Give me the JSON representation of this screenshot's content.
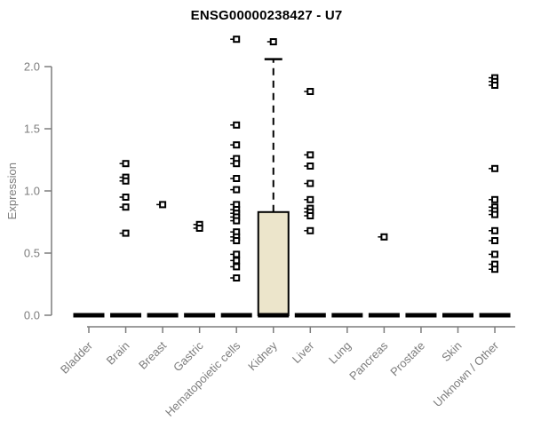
{
  "chart_data": {
    "type": "boxplot",
    "title": "ENSG00000238427 - U7",
    "ylabel": "Expression",
    "xlabel": "",
    "ylim": [
      0,
      2.3
    ],
    "yticks": [
      "0.0",
      "0.5",
      "1.0",
      "1.5",
      "2.0"
    ],
    "grid": false,
    "legend": "none",
    "categories": [
      "Bladder",
      "Brain",
      "Breast",
      "Gastric",
      "Hematopoietic cells",
      "Kidney",
      "Liver",
      "Lung",
      "Pancreas",
      "Prostate",
      "Skin",
      "Unknown / Other"
    ],
    "groups": [
      {
        "category": "Bladder",
        "median": 0,
        "outliers": []
      },
      {
        "category": "Brain",
        "median": 0,
        "outliers": [
          1.22,
          1.11,
          1.08,
          0.95,
          0.87,
          0.66
        ]
      },
      {
        "category": "Breast",
        "median": 0,
        "outliers": [
          0.89
        ]
      },
      {
        "category": "Gastric",
        "median": 0,
        "outliers": [
          0.73,
          0.7
        ]
      },
      {
        "category": "Hematopoietic cells",
        "median": 0,
        "outliers": [
          2.22,
          1.53,
          1.37,
          1.26,
          1.22,
          1.1,
          1.01,
          0.89,
          0.85,
          0.82,
          0.79,
          0.76,
          0.67,
          0.63,
          0.6,
          0.49,
          0.44,
          0.39,
          0.3
        ]
      },
      {
        "category": "Kidney",
        "median": 0,
        "q1": 0,
        "q3": 0.83,
        "whisker_high": 2.06,
        "outliers": [
          2.2
        ]
      },
      {
        "category": "Liver",
        "median": 0,
        "outliers": [
          1.8,
          1.29,
          1.2,
          1.06,
          0.93,
          0.86,
          0.83,
          0.8,
          0.68
        ]
      },
      {
        "category": "Lung",
        "median": 0,
        "outliers": []
      },
      {
        "category": "Pancreas",
        "median": 0,
        "outliers": [
          0.63
        ]
      },
      {
        "category": "Prostate",
        "median": 0,
        "outliers": []
      },
      {
        "category": "Skin",
        "median": 0,
        "outliers": []
      },
      {
        "category": "Unknown / Other",
        "median": 0,
        "outliers": [
          1.91,
          1.88,
          1.85,
          1.18,
          0.93,
          0.87,
          0.84,
          0.81,
          0.68,
          0.6,
          0.49,
          0.41,
          0.37
        ]
      }
    ],
    "colors": {
      "background": "#ffffff",
      "title": "#000000",
      "axis": "#7d7d7d",
      "tick_label": "#7d7d7d",
      "box_fill": "#ece5cb",
      "box_stroke": "#000000",
      "median": "#000000",
      "whisker": "#000000",
      "point_stroke": "#000000",
      "point_fill": "#ffffff"
    }
  }
}
